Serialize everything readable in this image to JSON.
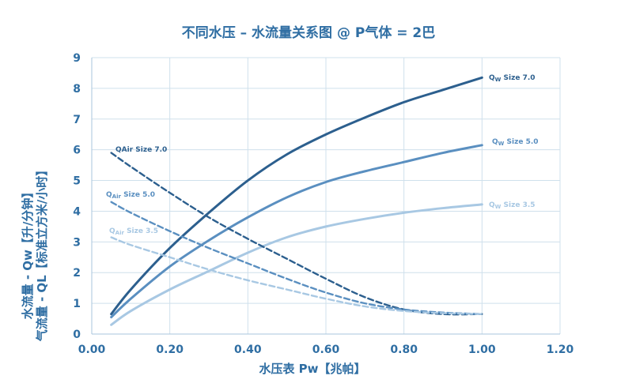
{
  "chart_data": {
    "type": "line",
    "title": "不同水压 – 水流量关系图 @ P气体 = 2巴",
    "xlabel": "水压表 Pw【兆帕】",
    "ylabel_line1": "水流量 - Qw【升/分钟】",
    "ylabel_line2": "气流量 - QL【标准立方米/小时】",
    "xlim": [
      0,
      1.2
    ],
    "ylim": [
      0,
      9
    ],
    "x_ticks": [
      "0.00",
      "0.20",
      "0.40",
      "0.60",
      "0.80",
      "1.00",
      "1.20"
    ],
    "y_ticks": [
      "0",
      "1",
      "2",
      "3",
      "4",
      "5",
      "6",
      "7",
      "8",
      "9"
    ],
    "grid": true,
    "series": [
      {
        "name": "QW Size 7.0",
        "label_prefix": "Q",
        "label_sub": "W",
        "label_rest": " Size 7.0",
        "style": "solid",
        "color": "#2c5f8e",
        "x": [
          0.05,
          0.1,
          0.2,
          0.3,
          0.4,
          0.5,
          0.6,
          0.7,
          0.8,
          0.9,
          1.0
        ],
        "y": [
          0.65,
          1.45,
          2.8,
          3.95,
          5.0,
          5.85,
          6.5,
          7.05,
          7.55,
          7.95,
          8.35
        ]
      },
      {
        "name": "QW Size 5.0",
        "label_prefix": "Q",
        "label_sub": "W",
        "label_rest": " Size 5.0",
        "style": "solid",
        "color": "#5a8fc0",
        "x": [
          0.05,
          0.1,
          0.2,
          0.3,
          0.4,
          0.5,
          0.6,
          0.7,
          0.8,
          0.9,
          1.0
        ],
        "y": [
          0.55,
          1.15,
          2.2,
          3.05,
          3.8,
          4.45,
          4.95,
          5.3,
          5.6,
          5.9,
          6.15
        ]
      },
      {
        "name": "QW Size 3.5",
        "label_prefix": "Q",
        "label_sub": "W",
        "label_rest": " Size 3.5",
        "style": "solid",
        "color": "#a8c8e3",
        "x": [
          0.05,
          0.1,
          0.2,
          0.3,
          0.4,
          0.5,
          0.6,
          0.7,
          0.8,
          0.9,
          1.0
        ],
        "y": [
          0.3,
          0.75,
          1.45,
          2.05,
          2.65,
          3.15,
          3.5,
          3.75,
          3.95,
          4.1,
          4.22
        ]
      },
      {
        "name": "QAir Size 7.0",
        "label_prefix": "QAir",
        "label_sub": "",
        "label_rest": " Size 7.0",
        "style": "dashed",
        "color": "#2c5f8e",
        "x": [
          0.05,
          0.1,
          0.2,
          0.3,
          0.4,
          0.5,
          0.6,
          0.7,
          0.8,
          0.9,
          1.0
        ],
        "y": [
          5.9,
          5.45,
          4.6,
          3.8,
          3.1,
          2.45,
          1.8,
          1.2,
          0.8,
          0.65,
          0.65
        ]
      },
      {
        "name": "QAir Size 5.0",
        "label_prefix": "Q",
        "label_sub": "Air",
        "label_rest": " Size 5.0",
        "style": "dashed",
        "color": "#5a8fc0",
        "x": [
          0.05,
          0.1,
          0.2,
          0.3,
          0.4,
          0.5,
          0.6,
          0.7,
          0.8,
          0.9,
          1.0
        ],
        "y": [
          4.3,
          3.95,
          3.35,
          2.8,
          2.3,
          1.8,
          1.35,
          1.0,
          0.8,
          0.7,
          0.65
        ]
      },
      {
        "name": "QAir Size 3.5",
        "label_prefix": "Q",
        "label_sub": "Air",
        "label_rest": " Size 3.5",
        "style": "dashed",
        "color": "#a8c8e3",
        "x": [
          0.05,
          0.1,
          0.2,
          0.3,
          0.4,
          0.5,
          0.6,
          0.7,
          0.8,
          0.9,
          1.0
        ],
        "y": [
          3.15,
          2.9,
          2.5,
          2.1,
          1.75,
          1.45,
          1.15,
          0.9,
          0.75,
          0.68,
          0.65
        ]
      }
    ]
  }
}
